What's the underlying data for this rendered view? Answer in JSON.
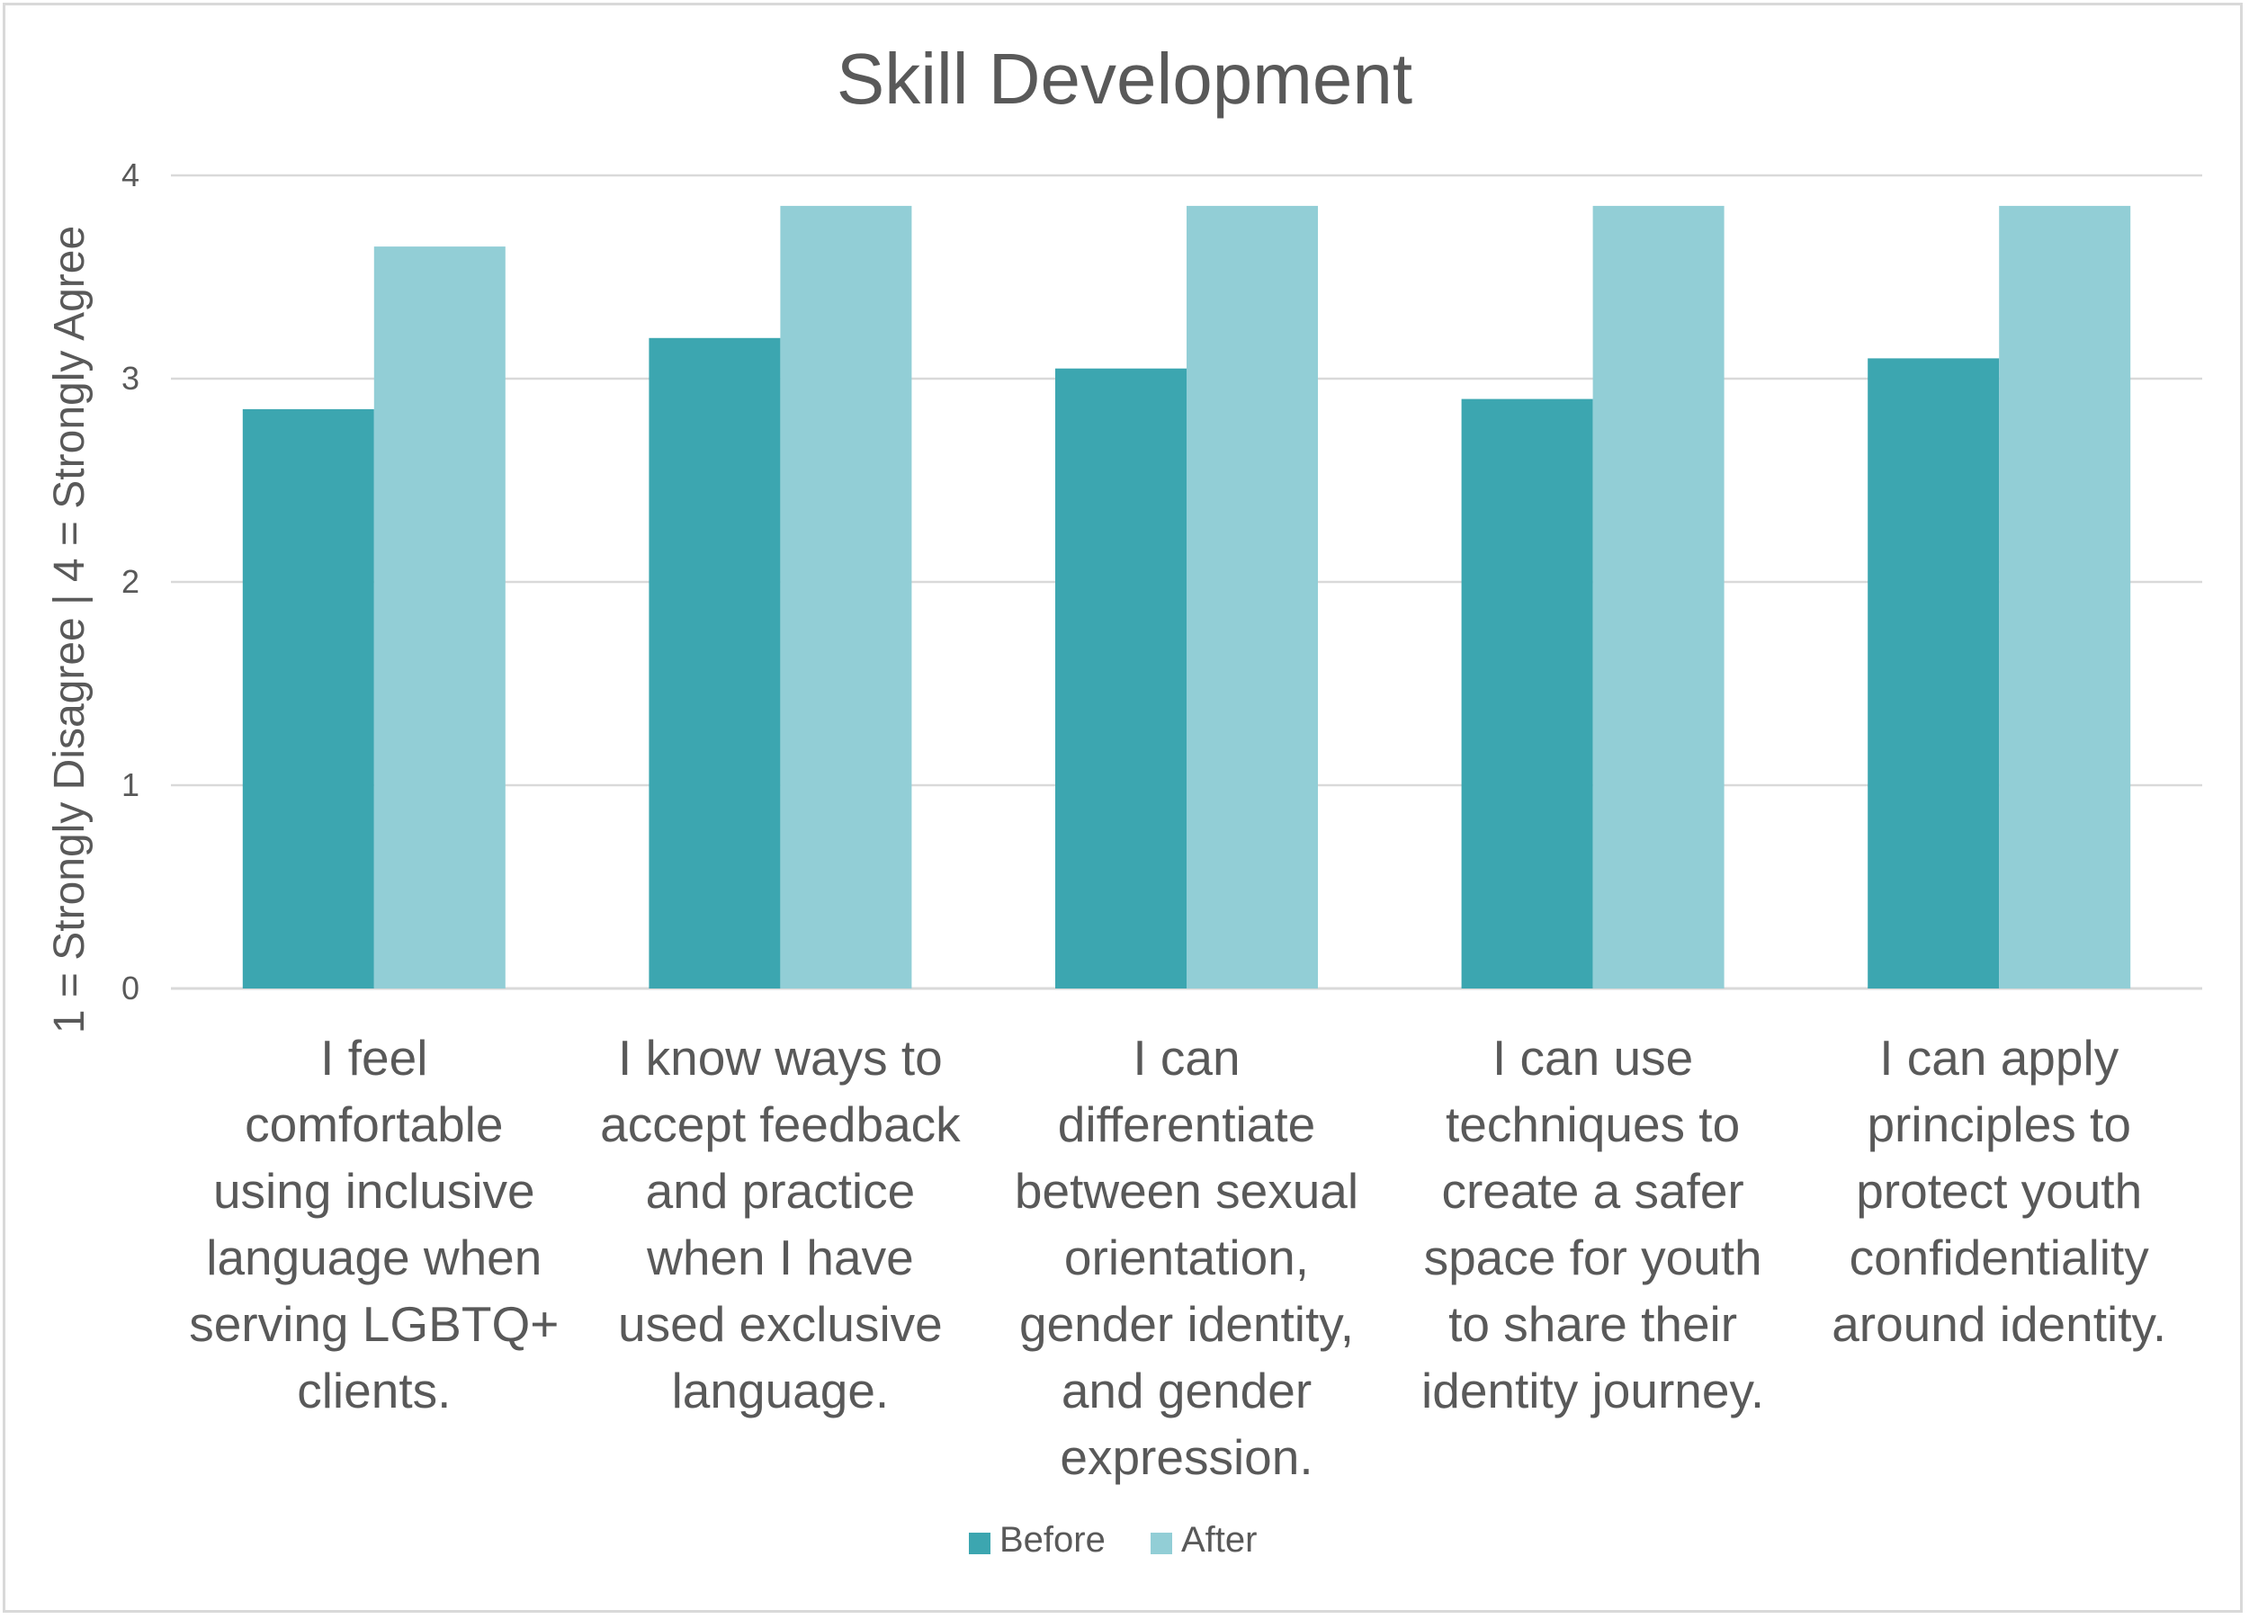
{
  "chart_data": {
    "type": "bar",
    "title": "Skill Development",
    "ylabel": "1 = Strongly Disagree  | 4 = Strongly Agree",
    "xlabel": "",
    "ylim": [
      0,
      4
    ],
    "yticks": [
      0,
      1,
      2,
      3,
      4
    ],
    "grid": true,
    "legend_position": "bottom",
    "categories": [
      [
        "I feel",
        "comfortable",
        "using inclusive",
        "language when",
        "serving LGBTQ+",
        "clients."
      ],
      [
        "I know ways to",
        "accept feedback",
        "and practice",
        "when I have",
        "used exclusive",
        "language."
      ],
      [
        "I can",
        "differentiate",
        "between sexual",
        "orientation,",
        "gender identity,",
        "and gender",
        "expression."
      ],
      [
        "I can use",
        "techniques to",
        "create a safer",
        "space for youth",
        "to share their",
        "identity journey."
      ],
      [
        "I can apply",
        "principles to",
        "protect youth",
        "confidentiality",
        "around identity."
      ]
    ],
    "series": [
      {
        "name": "Before",
        "color": "#3ca6b0",
        "values": [
          2.85,
          3.2,
          3.05,
          2.9,
          3.1
        ]
      },
      {
        "name": "After",
        "color": "#92ced6",
        "values": [
          3.65,
          3.85,
          3.85,
          3.85,
          3.85
        ]
      }
    ]
  }
}
